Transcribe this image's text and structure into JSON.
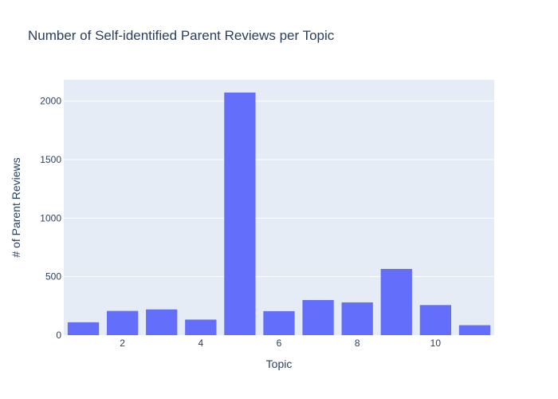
{
  "chart_data": {
    "type": "bar",
    "title": "Number of Self-identified Parent Reviews per Topic",
    "xlabel": "Topic",
    "ylabel": "# of Parent Reviews",
    "x": [
      1,
      2,
      3,
      4,
      5,
      6,
      7,
      8,
      9,
      10,
      11
    ],
    "values": [
      110,
      207,
      220,
      133,
      2073,
      205,
      300,
      280,
      566,
      257,
      85
    ],
    "xlim": [
      0.5,
      11.5
    ],
    "ylim": [
      0,
      2182
    ],
    "x_ticks": [
      2,
      4,
      6,
      8,
      10
    ],
    "y_ticks": [
      0,
      500,
      1000,
      1500,
      2000
    ],
    "grid": true,
    "bar_color": "#636efa",
    "plot_background": "#e5ecf6",
    "gridline_color": "#ffffff",
    "text_color": "#2a3f5f"
  }
}
